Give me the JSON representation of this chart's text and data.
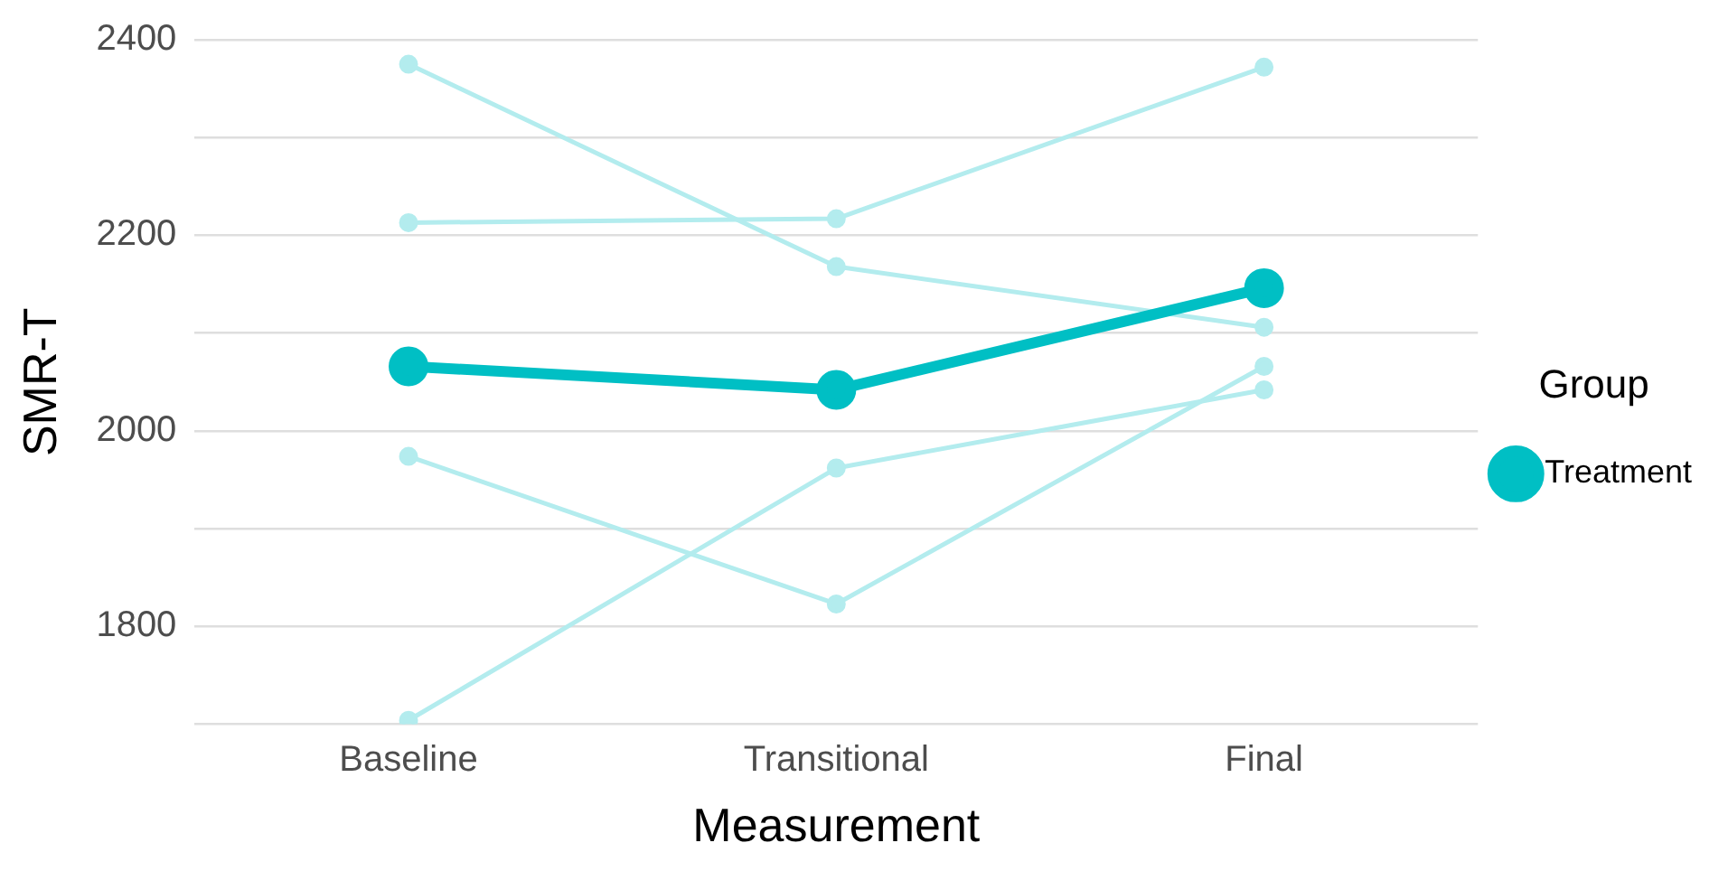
{
  "chart_data": {
    "type": "line",
    "xlabel": "Measurement",
    "ylabel": "SMR-T",
    "legend_title": "Group",
    "categories": [
      "Baseline",
      "Transitional",
      "Final"
    ],
    "series": [
      {
        "color": "#b3ecee",
        "values": [
          2375,
          2168,
          2106
        ]
      },
      {
        "color": "#b3ecee",
        "values": [
          2213,
          2217,
          2372
        ]
      },
      {
        "color": "#b3ecee",
        "values": [
          1974,
          1823,
          2066
        ]
      },
      {
        "color": "#b3ecee",
        "values": [
          1704,
          1962,
          2042
        ]
      },
      {
        "name": "Treatment",
        "color": "#00bfc4",
        "values": [
          2066,
          2042,
          2146
        ]
      }
    ],
    "ylim": [
      1700,
      2400
    ],
    "yticks": [
      {
        "value": 1700,
        "label": null
      },
      1800,
      {
        "value": 1900,
        "label": null
      },
      2000,
      {
        "value": 2100,
        "label": null
      },
      2200,
      {
        "value": 2300,
        "label": null
      },
      2400
    ],
    "grid": "y",
    "legend": "right",
    "marker": "circle",
    "line_style": "solid"
  }
}
